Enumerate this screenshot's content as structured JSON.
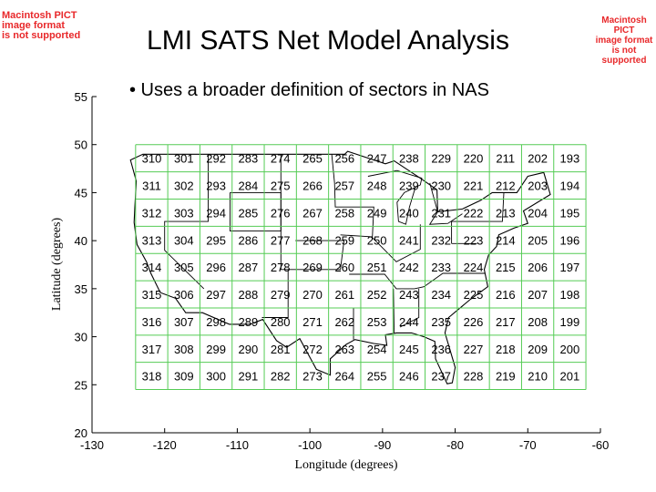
{
  "watermarks": {
    "left": "Macintosh PICT\nimage format\nis not supported",
    "right": "Macintosh PICT\nimage format\nis not supported"
  },
  "slide": {
    "title": "LMI SATS Net Model Analysis",
    "bullet": "•  Uses a broader definition of sectors in NAS"
  },
  "colors": {
    "grid": "#55cc55",
    "text": "#000000",
    "watermark": "#e8282a"
  },
  "chart_data": {
    "type": "heatmap",
    "title": "",
    "xlabel": "Longitude (degrees)",
    "ylabel": "Latitude (degrees)",
    "xlim": [
      -130,
      -60
    ],
    "ylim": [
      20,
      55
    ],
    "xticks": [
      -130,
      -120,
      -110,
      -100,
      -90,
      -80,
      -70,
      -60
    ],
    "yticks": [
      20,
      25,
      30,
      35,
      40,
      45,
      50,
      55
    ],
    "grid_lon_range": [
      -124,
      -62
    ],
    "grid_lat_range": [
      24.5,
      50
    ],
    "rows": 9,
    "cols": 14,
    "sector_ids": [
      [
        310,
        301,
        292,
        283,
        274,
        265,
        256,
        247,
        238,
        229,
        220,
        211,
        202,
        193
      ],
      [
        311,
        302,
        293,
        284,
        275,
        266,
        257,
        248,
        239,
        230,
        221,
        212,
        203,
        194
      ],
      [
        312,
        303,
        294,
        285,
        276,
        267,
        258,
        249,
        240,
        231,
        222,
        213,
        204,
        195
      ],
      [
        313,
        304,
        295,
        286,
        277,
        268,
        259,
        250,
        241,
        232,
        223,
        214,
        205,
        196
      ],
      [
        314,
        305,
        296,
        287,
        278,
        269,
        260,
        251,
        242,
        233,
        224,
        215,
        206,
        197
      ],
      [
        315,
        306,
        297,
        288,
        279,
        270,
        261,
        252,
        243,
        234,
        225,
        216,
        207,
        198
      ],
      [
        316,
        307,
        298,
        289,
        280,
        271,
        262,
        253,
        244,
        235,
        226,
        217,
        208,
        199
      ],
      [
        317,
        308,
        299,
        290,
        281,
        272,
        263,
        254,
        245,
        236,
        227,
        218,
        209,
        200
      ],
      [
        318,
        309,
        300,
        291,
        282,
        273,
        264,
        255,
        246,
        237,
        228,
        219,
        210,
        201
      ]
    ]
  }
}
